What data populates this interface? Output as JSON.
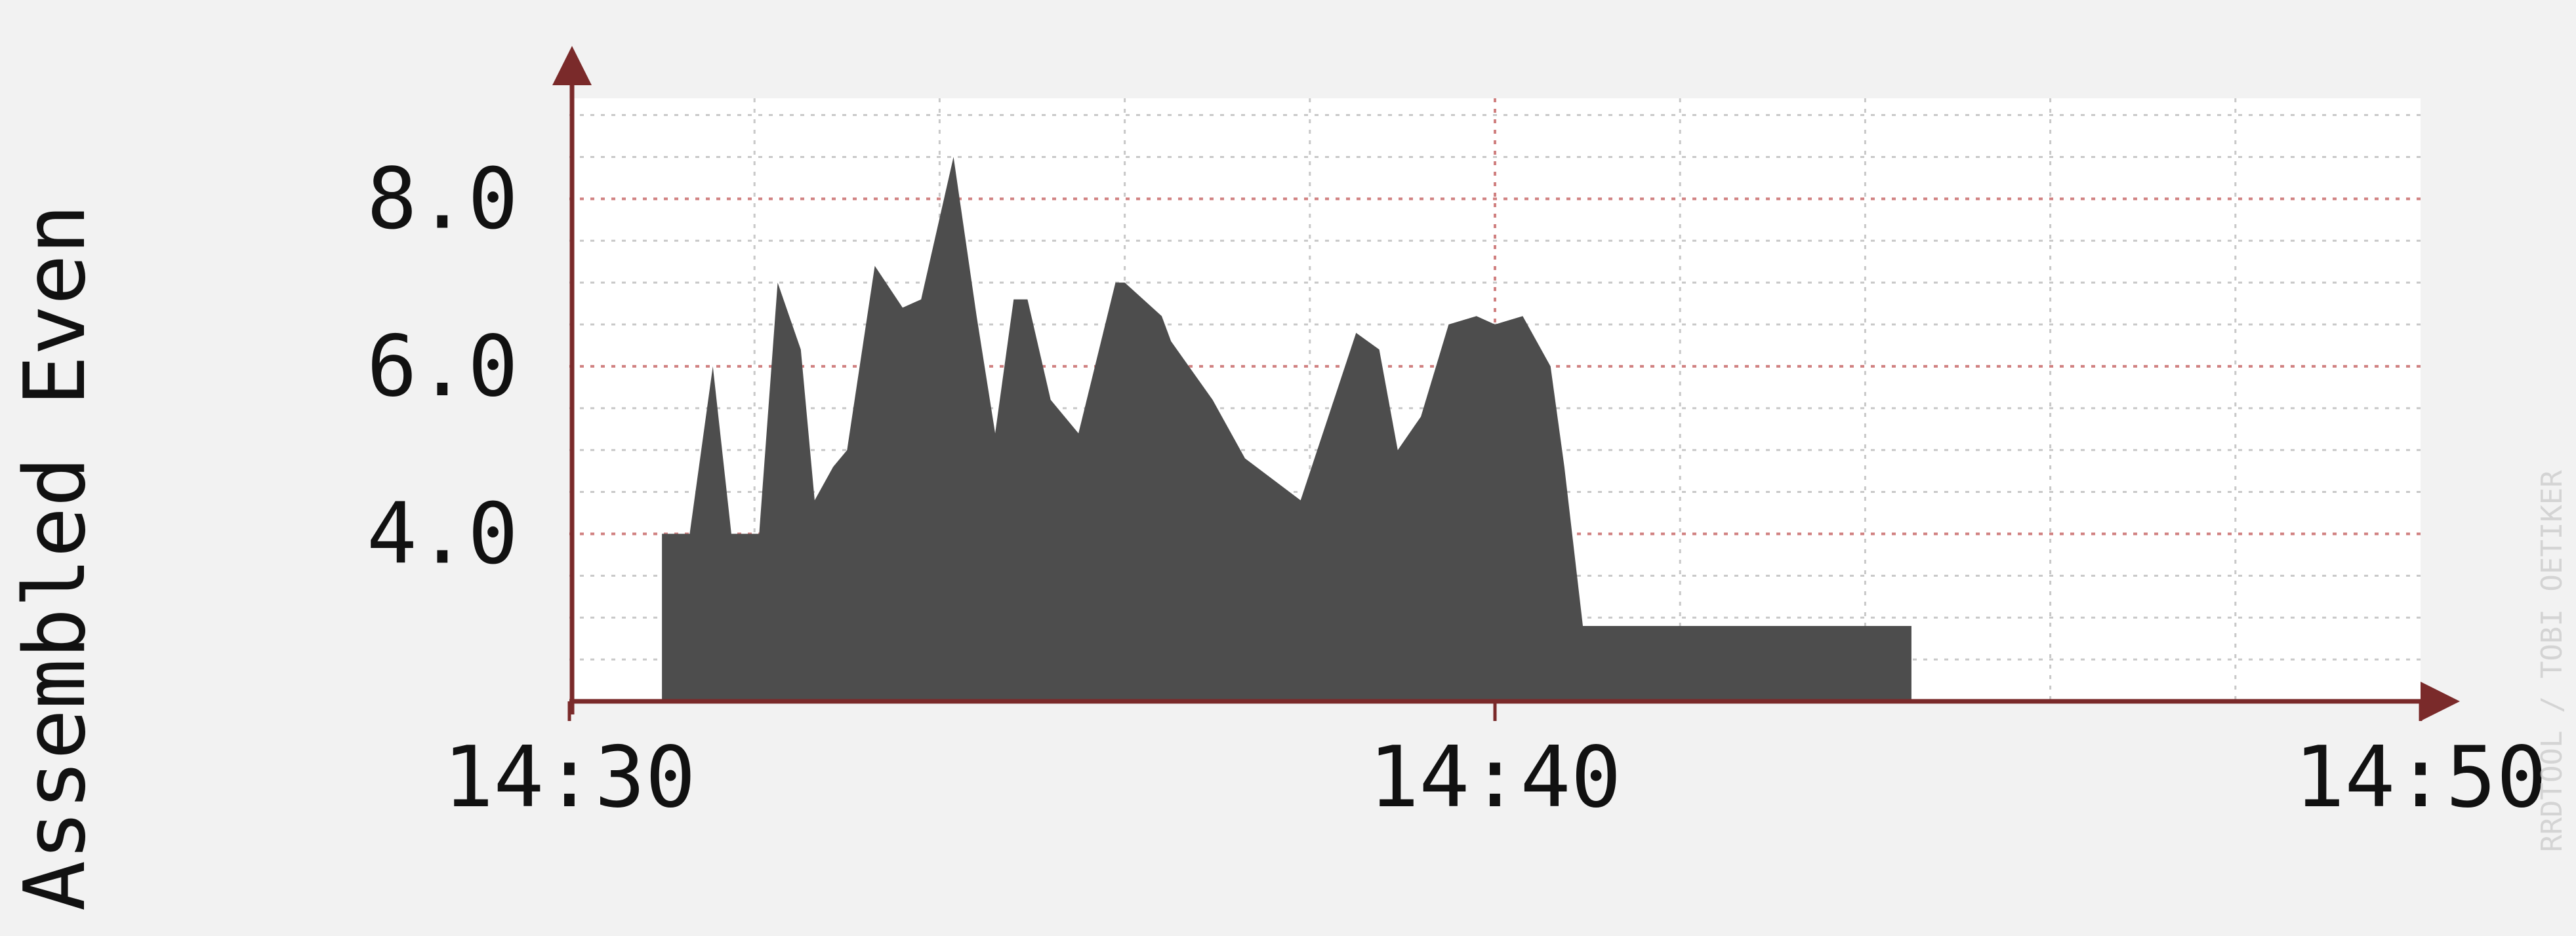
{
  "chart_data": {
    "type": "area",
    "title": "",
    "ylabel": "Assembled Even",
    "xlabel": "",
    "right_label_fragment": "RRDTOOL / TOBI OETIKER",
    "x_ticks": [
      "14:30",
      "14:40",
      "14:50"
    ],
    "y_ticks": [
      "4.0",
      "6.0",
      "8.0"
    ],
    "x_range_minutes": [
      0,
      20
    ],
    "ylim": [
      2.0,
      9.2
    ],
    "grid": true,
    "colors": {
      "background": "#f2f2f2",
      "plot_background": "#ffffff",
      "area": "#4d4d4d",
      "axis": "#7a2a2a",
      "major_grid": "#d08080",
      "minor_grid": "#c8c8c8"
    },
    "series": [
      {
        "x": [
          1.0,
          1.0,
          1.3,
          1.55,
          1.75,
          2.05,
          2.25,
          2.5,
          2.65,
          2.85,
          3.0,
          3.3,
          3.6,
          3.8,
          4.15,
          4.4,
          4.6,
          4.8,
          4.95,
          5.2,
          5.5,
          5.9,
          6.0,
          6.4,
          6.5,
          6.95,
          7.3,
          7.9,
          8.2,
          8.5,
          8.75,
          8.95,
          9.2,
          9.5,
          9.8,
          10.0,
          10.3,
          10.6,
          10.75,
          10.95,
          11.2,
          11.4,
          11.6,
          11.85,
          14.5,
          14.5
        ],
        "values": [
          2.0,
          4.0,
          4.0,
          6.0,
          4.0,
          4.0,
          7.0,
          6.2,
          4.4,
          4.8,
          5.0,
          7.2,
          6.7,
          6.8,
          8.5,
          6.6,
          5.2,
          6.8,
          6.8,
          5.6,
          5.2,
          7.0,
          7.0,
          6.6,
          6.3,
          5.6,
          4.9,
          4.4,
          5.4,
          6.4,
          6.2,
          5.0,
          5.4,
          6.5,
          6.6,
          6.5,
          6.6,
          6.0,
          4.8,
          2.9,
          2.9,
          2.9,
          2.9,
          2.9,
          2.9,
          2.0
        ]
      }
    ]
  }
}
